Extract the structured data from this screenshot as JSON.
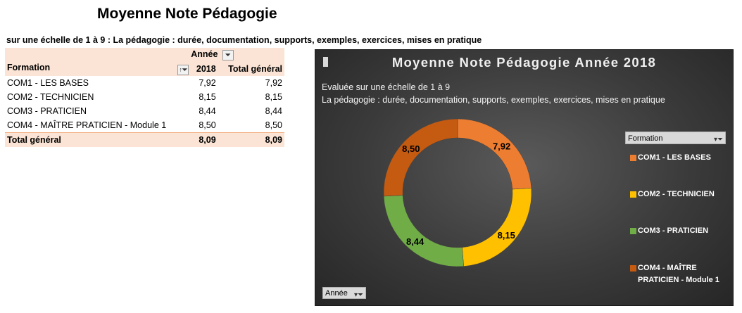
{
  "page_title": "Moyenne Note Pédagogie",
  "scale_note": "sur une échelle de 1 à 9 : La pédagogie : durée, documentation, supports, exemples, exercices, mises en pratique",
  "pivot": {
    "column_field": "Année",
    "row_field": "Formation",
    "col_year": "2018",
    "col_total": "Total général",
    "rows": [
      {
        "label": "COM1 - LES BASES",
        "v2018": "7,92",
        "total": "7,92"
      },
      {
        "label": "COM2 - TECHNICIEN",
        "v2018": "8,15",
        "total": "8,15"
      },
      {
        "label": "COM3 - PRATICIEN",
        "v2018": "8,44",
        "total": "8,44"
      },
      {
        "label": "COM4 - MAÎTRE PRATICIEN - Module 1",
        "v2018": "8,50",
        "total": "8,50"
      }
    ],
    "total_row": {
      "label": "Total général",
      "v2018": "8,09",
      "total": "8,09"
    }
  },
  "chart_data": {
    "type": "pie",
    "variant": "donut",
    "title": "Moyenne Note Pédagogie Année 2018",
    "subtitle_lines": [
      "Evaluée sur une échelle de 1 à 9",
      "La pédagogie : durée, documentation, supports, exemples, exercices, mises en pratique"
    ],
    "categories": [
      "COM1 - LES BASES",
      "COM2 - TECHNICIEN",
      "COM3 - PRATICIEN",
      "COM4 - MAÎTRE PRATICIEN - Module 1"
    ],
    "values": [
      7.92,
      8.15,
      8.44,
      8.5
    ],
    "data_labels": [
      "7,92",
      "8,15",
      "8,44",
      "8,50"
    ],
    "colors": [
      "#ed7d31",
      "#ffc000",
      "#70ad47",
      "#c55a11"
    ],
    "legend_field": "Formation",
    "legend_placement": "right",
    "filter_field": "Année"
  }
}
